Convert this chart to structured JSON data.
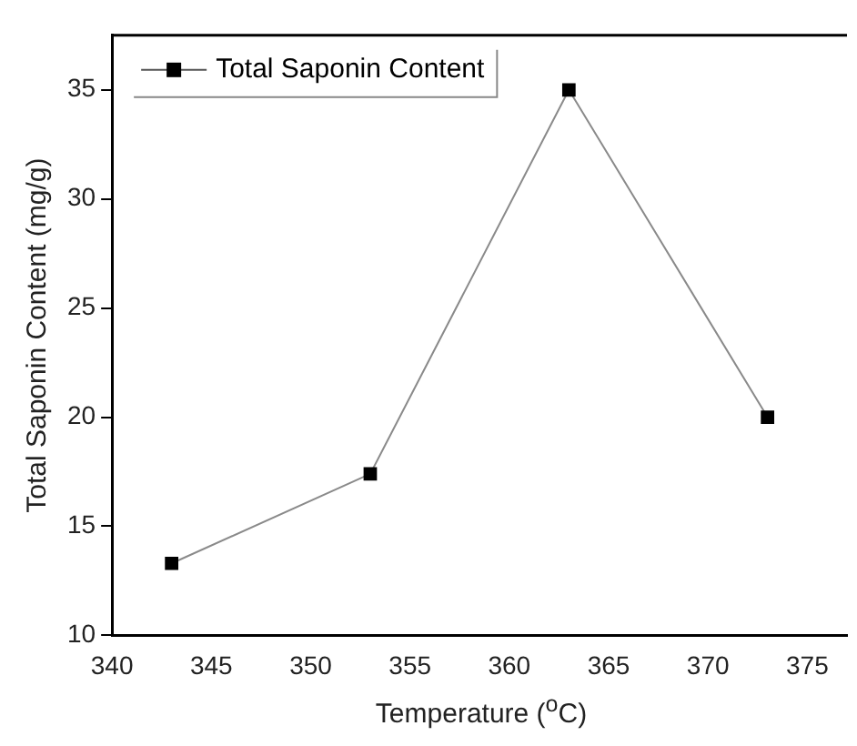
{
  "chart_data": {
    "type": "line",
    "xlabel": "Temperature ($^{o}$C)",
    "ylabel": "Total Saponin Content (mg/g)",
    "x": [
      343,
      353,
      363,
      373
    ],
    "series": [
      {
        "name": "Total Saponin Content",
        "color": "#000000",
        "values": [
          13.3,
          17.4,
          35.0,
          20.0
        ]
      }
    ],
    "xlim": [
      340,
      377
    ],
    "xticks": [
      340,
      345,
      350,
      355,
      360,
      365,
      370,
      375
    ],
    "ylim": [
      10,
      37.5
    ],
    "yticks": [
      10,
      15,
      20,
      25,
      30,
      35
    ],
    "marker": "square",
    "legend": "top left",
    "grid": false,
    "line_style": "solid"
  }
}
